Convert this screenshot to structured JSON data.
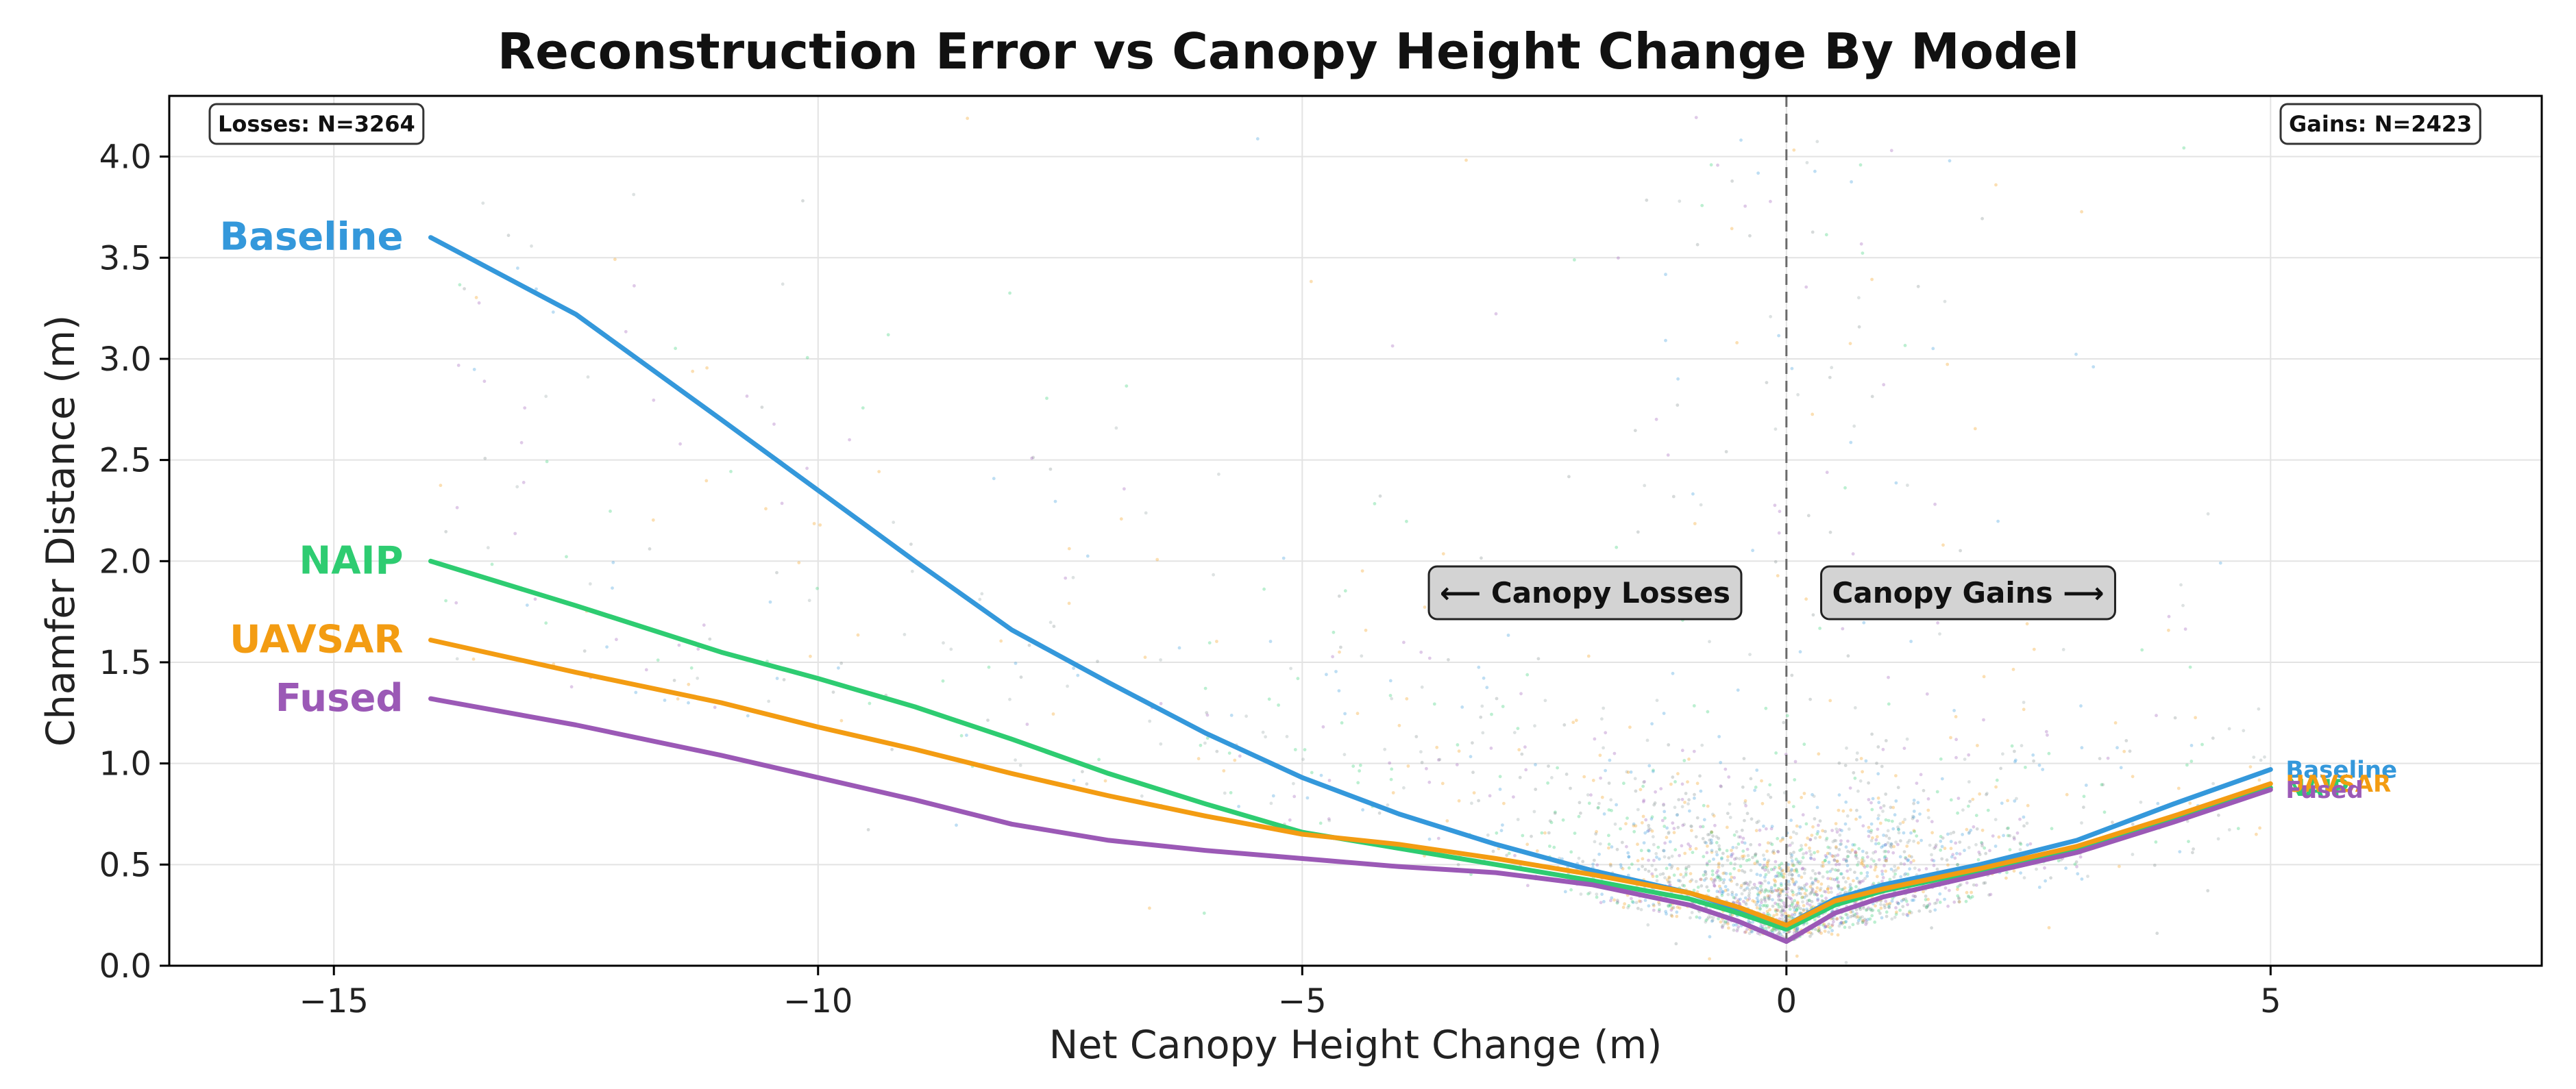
{
  "chart_data": {
    "type": "scatter",
    "title": "Reconstruction Error vs Canopy Height Change By Model",
    "xlabel": "Net Canopy Height Change (m)",
    "ylabel": "Chamfer Distance (m)",
    "xlim": [
      -16.7,
      7.8
    ],
    "ylim": [
      0.0,
      4.3
    ],
    "xticks": [
      -15,
      -10,
      -5,
      0,
      5
    ],
    "xtick_labels": [
      "−15",
      "−10",
      "−5",
      "0",
      "5"
    ],
    "yticks": [
      0.0,
      0.5,
      1.0,
      1.5,
      2.0,
      2.5,
      3.0,
      3.5,
      4.0
    ],
    "ytick_labels": [
      "0.0",
      "0.5",
      "1.0",
      "1.5",
      "2.0",
      "2.5",
      "3.0",
      "3.5",
      "4.0"
    ],
    "grid": true,
    "reference_line_x": 0,
    "annotations": {
      "losses_count": "Losses: N=3264",
      "gains_count": "Gains: N=2423",
      "losses_region": "⟵ Canopy Losses",
      "gains_region": "Canopy Gains ⟶"
    },
    "series": [
      {
        "name": "Baseline",
        "color": "#3498db",
        "x": [
          -14.0,
          -12.5,
          -11.0,
          -10.0,
          -9.0,
          -8.0,
          -7.0,
          -6.0,
          -5.0,
          -4.0,
          -3.0,
          -2.0,
          -1.0,
          -0.5,
          0.0,
          0.5,
          1.0,
          2.0,
          3.0,
          4.0,
          5.0
        ],
        "y": [
          3.6,
          3.22,
          2.7,
          2.35,
          2.0,
          1.66,
          1.4,
          1.15,
          0.93,
          0.75,
          0.6,
          0.47,
          0.36,
          0.28,
          0.2,
          0.33,
          0.4,
          0.5,
          0.62,
          0.8,
          0.97
        ]
      },
      {
        "name": "NAIP",
        "color": "#2ecc71",
        "x": [
          -14.0,
          -12.5,
          -11.0,
          -10.0,
          -9.0,
          -8.0,
          -7.0,
          -6.0,
          -5.0,
          -4.0,
          -3.0,
          -2.0,
          -1.0,
          -0.5,
          0.0,
          0.5,
          1.0,
          2.0,
          3.0,
          4.0,
          5.0
        ],
        "y": [
          2.0,
          1.78,
          1.55,
          1.42,
          1.28,
          1.12,
          0.95,
          0.8,
          0.66,
          0.58,
          0.5,
          0.42,
          0.33,
          0.26,
          0.18,
          0.3,
          0.37,
          0.47,
          0.58,
          0.73,
          0.88
        ]
      },
      {
        "name": "UAVSAR",
        "color": "#f39c12",
        "x": [
          -14.0,
          -12.5,
          -11.0,
          -10.0,
          -9.0,
          -8.0,
          -7.0,
          -6.0,
          -5.0,
          -4.0,
          -3.0,
          -2.0,
          -1.0,
          -0.5,
          0.0,
          0.5,
          1.0,
          2.0,
          3.0,
          4.0,
          5.0
        ],
        "y": [
          1.61,
          1.45,
          1.3,
          1.18,
          1.07,
          0.95,
          0.84,
          0.74,
          0.65,
          0.6,
          0.53,
          0.45,
          0.36,
          0.29,
          0.2,
          0.32,
          0.38,
          0.48,
          0.59,
          0.74,
          0.9
        ]
      },
      {
        "name": "Fused",
        "color": "#9b59b6",
        "x": [
          -14.0,
          -12.5,
          -11.0,
          -10.0,
          -9.0,
          -8.0,
          -7.0,
          -6.0,
          -5.0,
          -4.0,
          -3.0,
          -2.0,
          -1.0,
          -0.5,
          0.0,
          0.5,
          1.0,
          2.0,
          3.0,
          4.0,
          5.0
        ],
        "y": [
          1.32,
          1.19,
          1.04,
          0.93,
          0.82,
          0.7,
          0.62,
          0.57,
          0.53,
          0.49,
          0.46,
          0.4,
          0.3,
          0.22,
          0.12,
          0.26,
          0.34,
          0.45,
          0.56,
          0.71,
          0.87
        ]
      }
    ]
  }
}
